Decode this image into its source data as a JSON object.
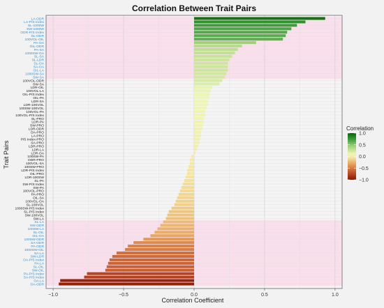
{
  "chart_data": {
    "type": "bar",
    "orientation": "horizontal",
    "title": "Correlation Between Trait Pairs",
    "xlabel": "Correlation Coefficient",
    "ylabel": "Trait Pairs",
    "xlim": [
      -1.05,
      1.05
    ],
    "xticks": [
      {
        "v": -1.0,
        "label": "−1.0"
      },
      {
        "v": -0.5,
        "label": "−0.5"
      },
      {
        "v": 0.0,
        "label": "0.0"
      },
      {
        "v": 0.5,
        "label": "0.5"
      },
      {
        "v": 1.0,
        "label": "1.0"
      }
    ],
    "grid": true,
    "legend": {
      "title": "Correlation",
      "position": "right",
      "ticks": [
        {
          "v": 1.0,
          "label": "1.0"
        },
        {
          "v": 0.5,
          "label": "0.5"
        },
        {
          "v": 0.0,
          "label": "0.0"
        },
        {
          "v": -0.5,
          "label": "−0.5"
        },
        {
          "v": -1.0,
          "label": "−1.0"
        }
      ]
    },
    "colors": {
      "strong_label": "#3a8fcf",
      "weak_label": "#222222",
      "significance_band": "#ffd0e6",
      "grid": "#cccccc",
      "panel_border": "#666666",
      "scale": [
        "#8b1a00",
        "#c0502a",
        "#e49a55",
        "#f5e7a2",
        "#eef6b6",
        "#9fd07a",
        "#3c9a3c",
        "#006a00"
      ]
    },
    "bars": [
      {
        "label": "LA-ODR",
        "value": 0.93,
        "significant": true
      },
      {
        "label": "LA-P/S Index",
        "value": 0.79,
        "significant": true
      },
      {
        "label": "SL-1000W",
        "value": 0.73,
        "significant": true
      },
      {
        "label": "SW-1000W",
        "value": 0.69,
        "significant": true
      },
      {
        "label": "ODR-P/S Index",
        "value": 0.66,
        "significant": true
      },
      {
        "label": "SL-ODR",
        "value": 0.65,
        "significant": true
      },
      {
        "label": "100VOL-OIL",
        "value": 0.63,
        "significant": true
      },
      {
        "label": "PA-OA",
        "value": 0.44,
        "significant": true
      },
      {
        "label": "OIL-ODR",
        "value": 0.34,
        "significant": true
      },
      {
        "label": "PA-SA",
        "value": 0.31,
        "significant": true
      },
      {
        "label": "1000SW-OA",
        "value": 0.29,
        "significant": true
      },
      {
        "label": "SL-SA",
        "value": 0.27,
        "significant": true
      },
      {
        "label": "SL-LDR",
        "value": 0.25,
        "significant": true
      },
      {
        "label": "SL-OA",
        "value": 0.24,
        "significant": true
      },
      {
        "label": "SA-OA",
        "value": 0.24,
        "significant": true
      },
      {
        "label": "OIL-LA",
        "value": 0.24,
        "significant": true
      },
      {
        "label": "1000SW-SA",
        "value": 0.23,
        "significant": true
      },
      {
        "label": "SW-SA",
        "value": 0.22,
        "significant": true
      },
      {
        "label": "100VOL-ODR",
        "value": 0.2,
        "significant": false
      },
      {
        "label": "SW-SA",
        "value": 0.18,
        "significant": false
      },
      {
        "label": "LDR-OIL",
        "value": 0.13,
        "significant": false
      },
      {
        "label": "100VOL-LA",
        "value": 0.12,
        "significant": false
      },
      {
        "label": "OIL-P/S Index",
        "value": 0.11,
        "significant": false
      },
      {
        "label": "OIL-PA",
        "value": 0.11,
        "significant": false
      },
      {
        "label": "LDR-SA",
        "value": 0.1,
        "significant": false
      },
      {
        "label": "LDR-100VOL",
        "value": 0.1,
        "significant": false
      },
      {
        "label": "100SW-100VOL",
        "value": 0.09,
        "significant": false
      },
      {
        "label": "100VOL-PA",
        "value": 0.08,
        "significant": false
      },
      {
        "label": "100VOL-P/S Index",
        "value": 0.08,
        "significant": false
      },
      {
        "label": "SL-PRO",
        "value": 0.07,
        "significant": false
      },
      {
        "label": "LDR-PA",
        "value": 0.07,
        "significant": false
      },
      {
        "label": "SW-PRO",
        "value": 0.06,
        "significant": false
      },
      {
        "label": "LDR-ODR",
        "value": 0.06,
        "significant": false
      },
      {
        "label": "OA-PRO",
        "value": 0.05,
        "significant": false
      },
      {
        "label": "LA-PRO",
        "value": 0.05,
        "significant": false
      },
      {
        "label": "P/S Index-PRO",
        "value": 0.04,
        "significant": false
      },
      {
        "label": "SA-PRO",
        "value": 0.04,
        "significant": false
      },
      {
        "label": "LDR-PRO",
        "value": 0.03,
        "significant": false
      },
      {
        "label": "LDR-LA",
        "value": 0.02,
        "significant": false
      },
      {
        "label": "LDR-OA",
        "value": 0.01,
        "significant": false
      },
      {
        "label": "100SW-PA",
        "value": -0.02,
        "significant": false
      },
      {
        "label": "ODR-PRO",
        "value": -0.03,
        "significant": false
      },
      {
        "label": "100VOL-SA",
        "value": -0.03,
        "significant": false
      },
      {
        "label": "100SW-PRO",
        "value": -0.04,
        "significant": false
      },
      {
        "label": "LDR-P/S Index",
        "value": -0.05,
        "significant": false
      },
      {
        "label": "OIL-PRO",
        "value": -0.05,
        "significant": false
      },
      {
        "label": "LDR-100SW",
        "value": -0.06,
        "significant": false
      },
      {
        "label": "SL-PA",
        "value": -0.07,
        "significant": false
      },
      {
        "label": "SW-P/S Index",
        "value": -0.08,
        "significant": false
      },
      {
        "label": "SW-PA",
        "value": -0.09,
        "significant": false
      },
      {
        "label": "100VOL-PRO",
        "value": -0.1,
        "significant": false
      },
      {
        "label": "PA-PRO",
        "value": -0.11,
        "significant": false
      },
      {
        "label": "OIL-SA",
        "value": -0.12,
        "significant": false
      },
      {
        "label": "100VOL-OA",
        "value": -0.13,
        "significant": false
      },
      {
        "label": "SL-100VOL",
        "value": -0.14,
        "significant": false
      },
      {
        "label": "1000SW-P/S Index",
        "value": -0.16,
        "significant": false
      },
      {
        "label": "SL-P/S Index",
        "value": -0.18,
        "significant": false
      },
      {
        "label": "SW-100VOL",
        "value": -0.19,
        "significant": false
      },
      {
        "label": "SW-LA",
        "value": -0.2,
        "significant": false
      },
      {
        "label": "SL-LA",
        "value": -0.22,
        "significant": true
      },
      {
        "label": "SW-ODR",
        "value": -0.24,
        "significant": true
      },
      {
        "label": "100SW-LA",
        "value": -0.26,
        "significant": true
      },
      {
        "label": "SL-OIL",
        "value": -0.28,
        "significant": true
      },
      {
        "label": "OIL-OA",
        "value": -0.31,
        "significant": true
      },
      {
        "label": "100SW-ODR",
        "value": -0.36,
        "significant": true
      },
      {
        "label": "SA-ODR",
        "value": -0.43,
        "significant": true
      },
      {
        "label": "PA-ODR",
        "value": -0.47,
        "significant": true
      },
      {
        "label": "1000SW-OIL",
        "value": -0.49,
        "significant": true
      },
      {
        "label": "SA-LA",
        "value": -0.55,
        "significant": true
      },
      {
        "label": "SW-LDR",
        "value": -0.58,
        "significant": true
      },
      {
        "label": "OA-P/S Index",
        "value": -0.6,
        "significant": true
      },
      {
        "label": "PA-LA",
        "value": -0.61,
        "significant": true
      },
      {
        "label": "SL-OIL",
        "value": -0.62,
        "significant": true
      },
      {
        "label": "SW-OIL",
        "value": -0.63,
        "significant": true
      },
      {
        "label": "PA-P/S Index",
        "value": -0.76,
        "significant": true
      },
      {
        "label": "SA-P/S Index",
        "value": -0.78,
        "significant": true
      },
      {
        "label": "OA-LA",
        "value": -0.95,
        "significant": true
      },
      {
        "label": "OA-ODR",
        "value": -0.96,
        "significant": true
      }
    ]
  }
}
